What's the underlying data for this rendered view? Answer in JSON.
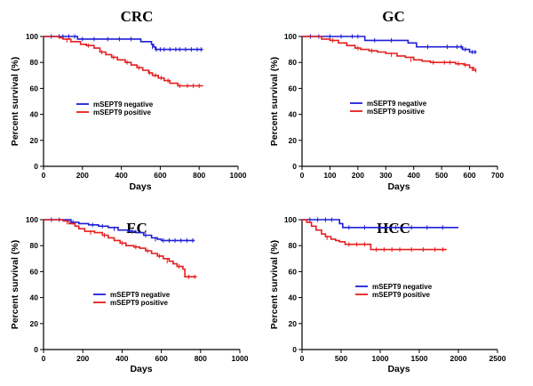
{
  "colors": {
    "negative": "#1f1fd6",
    "positive": "#e61e1e"
  },
  "chart_data": [
    {
      "type": "line",
      "title": "CRC",
      "xlabel": "Days",
      "ylabel": "Percent survival (%)",
      "xlim": [
        0,
        1000
      ],
      "ylim": [
        0,
        100
      ],
      "xticks": [
        0,
        200,
        400,
        600,
        800,
        1000
      ],
      "yticks": [
        0,
        20,
        40,
        60,
        80,
        100
      ],
      "legend_position": "center-left",
      "series": [
        {
          "name": "mSEPT9 negative",
          "color_key": "negative",
          "steps": [
            [
              0,
              100
            ],
            [
              170,
              100
            ],
            [
              175,
              98
            ],
            [
              490,
              98
            ],
            [
              500,
              96
            ],
            [
              545,
              96
            ],
            [
              555,
              94
            ],
            [
              565,
              92
            ],
            [
              575,
              90
            ],
            [
              820,
              90
            ]
          ],
          "censors": [
            [
              40,
              100
            ],
            [
              80,
              100
            ],
            [
              100,
              100
            ],
            [
              130,
              100
            ],
            [
              160,
              100
            ],
            [
              200,
              98
            ],
            [
              260,
              98
            ],
            [
              330,
              98
            ],
            [
              390,
              98
            ],
            [
              450,
              98
            ],
            [
              560,
              92
            ],
            [
              580,
              90
            ],
            [
              600,
              90
            ],
            [
              620,
              90
            ],
            [
              650,
              90
            ],
            [
              680,
              90
            ],
            [
              700,
              90
            ],
            [
              730,
              90
            ],
            [
              760,
              90
            ],
            [
              790,
              90
            ],
            [
              810,
              90
            ]
          ]
        },
        {
          "name": "mSEPT9 positive",
          "color_key": "positive",
          "steps": [
            [
              0,
              100
            ],
            [
              60,
              100
            ],
            [
              80,
              99
            ],
            [
              100,
              98
            ],
            [
              140,
              96
            ],
            [
              190,
              94
            ],
            [
              220,
              93
            ],
            [
              260,
              91
            ],
            [
              290,
              88
            ],
            [
              320,
              86
            ],
            [
              350,
              84
            ],
            [
              380,
              82
            ],
            [
              420,
              80
            ],
            [
              450,
              78
            ],
            [
              480,
              76
            ],
            [
              510,
              74
            ],
            [
              540,
              72
            ],
            [
              560,
              70
            ],
            [
              590,
              68
            ],
            [
              620,
              66
            ],
            [
              650,
              64
            ],
            [
              690,
              62
            ],
            [
              820,
              62
            ]
          ],
          "censors": [
            [
              120,
              97
            ],
            [
              230,
              93
            ],
            [
              300,
              88
            ],
            [
              360,
              84
            ],
            [
              430,
              80
            ],
            [
              490,
              76
            ],
            [
              545,
              72
            ],
            [
              575,
              70
            ],
            [
              605,
              68
            ],
            [
              640,
              66
            ],
            [
              700,
              62
            ],
            [
              740,
              62
            ],
            [
              770,
              62
            ],
            [
              800,
              62
            ]
          ]
        }
      ]
    },
    {
      "type": "line",
      "title": "GC",
      "xlabel": "Days",
      "ylabel": "Percent survival (%)",
      "xlim": [
        0,
        700
      ],
      "ylim": [
        0,
        100
      ],
      "xticks": [
        0,
        100,
        200,
        300,
        400,
        500,
        600,
        700
      ],
      "yticks": [
        0,
        20,
        40,
        60,
        80,
        100
      ],
      "legend_position": "center-right",
      "series": [
        {
          "name": "mSEPT9 negative",
          "color_key": "negative",
          "steps": [
            [
              0,
              100
            ],
            [
              215,
              100
            ],
            [
              225,
              97
            ],
            [
              370,
              97
            ],
            [
              380,
              95
            ],
            [
              410,
              92
            ],
            [
              560,
              92
            ],
            [
              575,
              90
            ],
            [
              600,
              88
            ],
            [
              625,
              88
            ]
          ],
          "censors": [
            [
              30,
              100
            ],
            [
              60,
              100
            ],
            [
              100,
              100
            ],
            [
              140,
              100
            ],
            [
              180,
              100
            ],
            [
              200,
              100
            ],
            [
              260,
              97
            ],
            [
              320,
              97
            ],
            [
              450,
              92
            ],
            [
              520,
              92
            ],
            [
              555,
              92
            ],
            [
              570,
              92
            ],
            [
              585,
              90
            ],
            [
              610,
              88
            ],
            [
              620,
              88
            ]
          ]
        },
        {
          "name": "mSEPT9 positive",
          "color_key": "positive",
          "steps": [
            [
              0,
              100
            ],
            [
              60,
              100
            ],
            [
              70,
              98
            ],
            [
              100,
              97
            ],
            [
              130,
              95
            ],
            [
              160,
              93
            ],
            [
              190,
              91
            ],
            [
              210,
              90
            ],
            [
              240,
              89
            ],
            [
              270,
              88
            ],
            [
              300,
              87
            ],
            [
              340,
              85
            ],
            [
              370,
              84
            ],
            [
              400,
              82
            ],
            [
              430,
              81
            ],
            [
              460,
              80
            ],
            [
              500,
              80
            ],
            [
              550,
              79
            ],
            [
              580,
              78
            ],
            [
              600,
              76
            ],
            [
              615,
              74
            ],
            [
              625,
              74
            ]
          ],
          "censors": [
            [
              110,
              97
            ],
            [
              200,
              91
            ],
            [
              250,
              89
            ],
            [
              320,
              86
            ],
            [
              390,
              82
            ],
            [
              470,
              80
            ],
            [
              510,
              80
            ],
            [
              530,
              80
            ],
            [
              560,
              79
            ],
            [
              585,
              78
            ],
            [
              610,
              75
            ],
            [
              622,
              74
            ]
          ]
        }
      ]
    },
    {
      "type": "line",
      "title": "EC",
      "xlabel": "Days",
      "ylabel": "Percent survival (%)",
      "xlim": [
        0,
        1000
      ],
      "ylim": [
        0,
        100
      ],
      "xticks": [
        0,
        200,
        400,
        600,
        800,
        1000
      ],
      "yticks": [
        0,
        20,
        40,
        60,
        80,
        100
      ],
      "legend_position": "center-left",
      "series": [
        {
          "name": "mSEPT9 negative",
          "color_key": "negative",
          "steps": [
            [
              0,
              100
            ],
            [
              100,
              100
            ],
            [
              140,
              98
            ],
            [
              180,
              97
            ],
            [
              230,
              96
            ],
            [
              280,
              95
            ],
            [
              330,
              94
            ],
            [
              380,
              92
            ],
            [
              430,
              91
            ],
            [
              470,
              90
            ],
            [
              510,
              88
            ],
            [
              550,
              86
            ],
            [
              580,
              85
            ],
            [
              600,
              84
            ],
            [
              770,
              84
            ]
          ],
          "censors": [
            [
              40,
              100
            ],
            [
              80,
              100
            ],
            [
              150,
              98
            ],
            [
              250,
              96
            ],
            [
              300,
              95
            ],
            [
              360,
              93
            ],
            [
              450,
              91
            ],
            [
              520,
              88
            ],
            [
              570,
              85
            ],
            [
              610,
              84
            ],
            [
              640,
              84
            ],
            [
              670,
              84
            ],
            [
              700,
              84
            ],
            [
              730,
              84
            ],
            [
              760,
              84
            ]
          ]
        },
        {
          "name": "mSEPT9 positive",
          "color_key": "positive",
          "steps": [
            [
              0,
              100
            ],
            [
              80,
              100
            ],
            [
              100,
              99
            ],
            [
              130,
              97
            ],
            [
              160,
              95
            ],
            [
              180,
              93
            ],
            [
              210,
              91
            ],
            [
              260,
              90
            ],
            [
              300,
              88
            ],
            [
              330,
              86
            ],
            [
              360,
              84
            ],
            [
              390,
              82
            ],
            [
              420,
              80
            ],
            [
              460,
              79
            ],
            [
              490,
              78
            ],
            [
              520,
              76
            ],
            [
              550,
              74
            ],
            [
              580,
              72
            ],
            [
              610,
              70
            ],
            [
              640,
              68
            ],
            [
              660,
              66
            ],
            [
              680,
              64
            ],
            [
              710,
              62
            ],
            [
              720,
              56
            ],
            [
              780,
              56
            ]
          ],
          "censors": [
            [
              120,
              98
            ],
            [
              240,
              90
            ],
            [
              310,
              88
            ],
            [
              400,
              82
            ],
            [
              470,
              79
            ],
            [
              530,
              76
            ],
            [
              590,
              72
            ],
            [
              630,
              68
            ],
            [
              690,
              64
            ],
            [
              740,
              56
            ],
            [
              770,
              56
            ]
          ]
        }
      ]
    },
    {
      "type": "line",
      "title": "HCC",
      "xlabel": "Days",
      "ylabel": "Percent survival (%)",
      "xlim": [
        0,
        2500
      ],
      "ylim": [
        0,
        100
      ],
      "xticks": [
        0,
        500,
        1000,
        1500,
        2000,
        2500
      ],
      "yticks": [
        0,
        20,
        40,
        60,
        80,
        100
      ],
      "legend_position": "center",
      "series": [
        {
          "name": "mSEPT9 negative",
          "color_key": "negative",
          "steps": [
            [
              0,
              100
            ],
            [
              450,
              100
            ],
            [
              480,
              97
            ],
            [
              520,
              94
            ],
            [
              2000,
              94
            ]
          ],
          "censors": [
            [
              100,
              100
            ],
            [
              200,
              100
            ],
            [
              300,
              100
            ],
            [
              380,
              100
            ],
            [
              600,
              94
            ],
            [
              800,
              94
            ],
            [
              1000,
              94
            ],
            [
              1200,
              94
            ],
            [
              1400,
              94
            ],
            [
              1600,
              94
            ],
            [
              1800,
              94
            ]
          ]
        },
        {
          "name": "mSEPT9 positive",
          "color_key": "positive",
          "steps": [
            [
              0,
              100
            ],
            [
              60,
              98
            ],
            [
              120,
              95
            ],
            [
              180,
              92
            ],
            [
              250,
              89
            ],
            [
              300,
              87
            ],
            [
              370,
              85
            ],
            [
              430,
              84
            ],
            [
              480,
              83
            ],
            [
              550,
              81
            ],
            [
              850,
              81
            ],
            [
              880,
              77
            ],
            [
              1850,
              77
            ]
          ],
          "censors": [
            [
              320,
              86
            ],
            [
              600,
              81
            ],
            [
              700,
              81
            ],
            [
              800,
              81
            ],
            [
              950,
              77
            ],
            [
              1050,
              77
            ],
            [
              1150,
              77
            ],
            [
              1250,
              77
            ],
            [
              1400,
              77
            ],
            [
              1550,
              77
            ],
            [
              1700,
              77
            ],
            [
              1800,
              77
            ]
          ]
        }
      ]
    }
  ]
}
